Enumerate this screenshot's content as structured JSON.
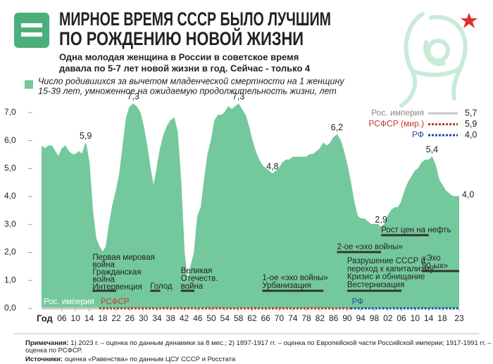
{
  "header": {
    "title": [
      "МИРНОЕ ВРЕМЯ СССР БЫЛО ЛУЧШИМ",
      "ПО РОЖДЕНИЮ НОВОЙ ЖИЗНИ"
    ],
    "subtitle": [
      "Одна молодая женщина в России в советское время",
      "давала по 5-7 лет новой жизни в год. Сейчас - только 4"
    ]
  },
  "chart_data": {
    "type": "area",
    "series_label": [
      "Число родившихся за вычетом младенческой смертности на 1 женщину",
      "15-39 лет, умноженное на ожидаемую продолжительность жизни, лет"
    ],
    "color": "#74c99c",
    "xlabel": "Год",
    "x": [
      1900,
      1901,
      1902,
      1903,
      1904,
      1905,
      1906,
      1907,
      1908,
      1909,
      1910,
      1911,
      1912,
      1913,
      1914,
      1915,
      1916,
      1917,
      1918,
      1919,
      1920,
      1921,
      1922,
      1923,
      1924,
      1925,
      1926,
      1927,
      1928,
      1929,
      1930,
      1931,
      1932,
      1933,
      1934,
      1935,
      1936,
      1937,
      1938,
      1939,
      1940,
      1941,
      1942,
      1943,
      1944,
      1945,
      1946,
      1947,
      1948,
      1949,
      1950,
      1951,
      1952,
      1953,
      1954,
      1955,
      1956,
      1957,
      1958,
      1959,
      1960,
      1961,
      1962,
      1963,
      1964,
      1965,
      1966,
      1967,
      1968,
      1969,
      1970,
      1971,
      1972,
      1973,
      1974,
      1975,
      1976,
      1977,
      1978,
      1979,
      1980,
      1981,
      1982,
      1983,
      1984,
      1985,
      1986,
      1987,
      1988,
      1989,
      1990,
      1991,
      1992,
      1993,
      1994,
      1995,
      1996,
      1997,
      1998,
      1999,
      2000,
      2001,
      2002,
      2003,
      2004,
      2005,
      2006,
      2007,
      2008,
      2009,
      2010,
      2011,
      2012,
      2013,
      2014,
      2015,
      2016,
      2017,
      2018,
      2019,
      2020,
      2021,
      2022,
      2023
    ],
    "values": [
      5.8,
      5.7,
      5.8,
      5.8,
      5.6,
      5.4,
      5.7,
      5.8,
      5.6,
      5.5,
      5.5,
      5.6,
      5.5,
      5.9,
      5.2,
      3.5,
      2.5,
      2.2,
      2.0,
      2.2,
      3.0,
      3.7,
      4.2,
      4.8,
      5.8,
      6.8,
      7.2,
      7.3,
      7.2,
      7.0,
      6.5,
      5.8,
      5.0,
      4.3,
      5.0,
      5.7,
      6.2,
      6.5,
      6.7,
      6.8,
      6.3,
      4.5,
      2.0,
      0.9,
      1.5,
      2.0,
      3.3,
      3.6,
      4.6,
      5.5,
      6.0,
      6.7,
      6.9,
      6.9,
      7.0,
      7.2,
      7.1,
      7.2,
      7.3,
      7.1,
      6.9,
      6.5,
      6.0,
      5.6,
      5.3,
      5.1,
      5.0,
      4.9,
      4.8,
      4.9,
      5.0,
      5.2,
      5.3,
      5.3,
      5.4,
      5.4,
      5.4,
      5.4,
      5.4,
      5.5,
      5.5,
      5.6,
      5.7,
      5.9,
      5.8,
      5.9,
      6.1,
      6.2,
      6.0,
      5.6,
      5.1,
      4.5,
      3.8,
      3.3,
      3.2,
      3.2,
      3.1,
      3.0,
      3.0,
      3.0,
      2.9,
      3.0,
      3.3,
      3.5,
      3.6,
      3.6,
      3.8,
      4.2,
      4.5,
      4.7,
      4.9,
      5.0,
      5.2,
      5.3,
      5.3,
      5.4,
      5.1,
      4.6,
      4.4,
      4.2,
      4.1,
      4.0,
      4.0,
      4.0
    ],
    "value_labels": [
      null,
      null,
      null,
      null,
      null,
      null,
      null,
      null,
      null,
      null,
      null,
      null,
      null,
      "5,9",
      null,
      null,
      null,
      null,
      null,
      null,
      null,
      null,
      null,
      null,
      null,
      null,
      null,
      "7,3",
      null,
      null,
      null,
      null,
      null,
      null,
      null,
      null,
      null,
      null,
      null,
      null,
      null,
      null,
      null,
      null,
      null,
      null,
      null,
      null,
      null,
      null,
      null,
      null,
      null,
      null,
      null,
      null,
      null,
      null,
      "7,3",
      null,
      null,
      null,
      null,
      null,
      null,
      null,
      null,
      null,
      "4,8",
      null,
      null,
      null,
      null,
      null,
      null,
      null,
      null,
      null,
      null,
      null,
      null,
      null,
      null,
      null,
      null,
      null,
      null,
      "6,2",
      null,
      null,
      null,
      null,
      null,
      null,
      null,
      null,
      null,
      null,
      null,
      null,
      "2,9",
      null,
      null,
      null,
      null,
      null,
      null,
      null,
      null,
      null,
      null,
      null,
      null,
      null,
      null,
      "5,4",
      null,
      null,
      null,
      null,
      null,
      null,
      null,
      "4,0"
    ],
    "xlim": [
      1900,
      2023
    ],
    "ylim": [
      0,
      7.5
    ],
    "yticks": [
      {
        "value": 0,
        "label": "0,0"
      },
      {
        "value": 1,
        "label": "1,0"
      },
      {
        "value": 2,
        "label": "2,0"
      },
      {
        "value": 3,
        "label": "3,0"
      },
      {
        "value": 4,
        "label": "4,0"
      },
      {
        "value": 5,
        "label": "5,0"
      },
      {
        "value": 6,
        "label": "6,0"
      },
      {
        "value": 7,
        "label": "7,0"
      }
    ],
    "xticks": [
      {
        "value": 1906,
        "label": "06"
      },
      {
        "value": 1910,
        "label": "10"
      },
      {
        "value": 1914,
        "label": "14"
      },
      {
        "value": 1918,
        "label": "18"
      },
      {
        "value": 1922,
        "label": "22"
      },
      {
        "value": 1926,
        "label": "26"
      },
      {
        "value": 1930,
        "label": "30"
      },
      {
        "value": 1934,
        "label": "34"
      },
      {
        "value": 1938,
        "label": "38"
      },
      {
        "value": 1942,
        "label": "42"
      },
      {
        "value": 1946,
        "label": "46"
      },
      {
        "value": 1950,
        "label": "50"
      },
      {
        "value": 1954,
        "label": "54"
      },
      {
        "value": 1958,
        "label": "58"
      },
      {
        "value": 1962,
        "label": "62"
      },
      {
        "value": 1966,
        "label": "66"
      },
      {
        "value": 1970,
        "label": "70"
      },
      {
        "value": 1974,
        "label": "74"
      },
      {
        "value": 1978,
        "label": "78"
      },
      {
        "value": 1982,
        "label": "82"
      },
      {
        "value": 1986,
        "label": "86"
      },
      {
        "value": 1990,
        "label": "90"
      },
      {
        "value": 1994,
        "label": "94"
      },
      {
        "value": 1998,
        "label": "98"
      },
      {
        "value": 2002,
        "label": "02"
      },
      {
        "value": 2006,
        "label": "06"
      },
      {
        "value": 2010,
        "label": "10"
      },
      {
        "value": 2014,
        "label": "14"
      },
      {
        "value": 2018,
        "label": "18"
      },
      {
        "value": 2023,
        "label": "23"
      }
    ],
    "grid": false,
    "periods": [
      {
        "name": "Рос. империя",
        "axis_label": "Рос. империя",
        "color": "#c8c8c8",
        "from": 1897,
        "to": 1917,
        "value": 5.7,
        "value_label": "5,7"
      },
      {
        "name": "РСФСР (мир.)",
        "axis_label": "РСФСР",
        "color": "#c0392b",
        "from": 1917,
        "to": 1991,
        "value": 5.9,
        "value_label": "5,9"
      },
      {
        "name": "РФ",
        "axis_label": "РФ",
        "color": "#1f4aa0",
        "from": 1991,
        "to": 2023,
        "value": 4.0,
        "value_label": "4,0"
      }
    ],
    "annotations": [
      {
        "lines": [
          "Первая мировая",
          "война",
          "Гражданская",
          "война",
          "Интервенция"
        ],
        "from": 1915,
        "to": 1922
      },
      {
        "lines": [
          "Голод"
        ],
        "from": 1932,
        "to": 1935
      },
      {
        "lines": [
          "Великая",
          "Отечеств.",
          "война"
        ],
        "from": 1941,
        "to": 1945
      },
      {
        "lines": [
          "1-ое «эхо войны»",
          "Урбанизация"
        ],
        "from": 1965,
        "to": 1983
      },
      {
        "lines": [
          "2-ое «эхо войны»"
        ],
        "from": 1987,
        "to": 2000
      },
      {
        "lines": [
          "Разрушение СССР и",
          "переход к капитализму",
          "Кризис и обнищание",
          "Вестернизация"
        ],
        "from": 1990,
        "to": 2006
      },
      {
        "lines": [
          "Рост цен на нефть"
        ],
        "from": 2000,
        "to": 2014
      },
      {
        "lines": [
          "«Эхо",
          "90-ых»"
        ],
        "from": 2012,
        "to": 2023
      }
    ]
  },
  "footer": {
    "notes_label": "Примечания:",
    "notes": [
      "1) 2023 г. – оценка по данным динамики за 8 мес.; 2) 1897-1917 гг. – оценка по Европейской части Российской империи; 1917-1991 гг. –",
      "оценка по РСФСР."
    ],
    "sources_label": "Источники:",
    "sources": "оценка «Равенства» по данным ЦСУ СССР и Росстата"
  }
}
